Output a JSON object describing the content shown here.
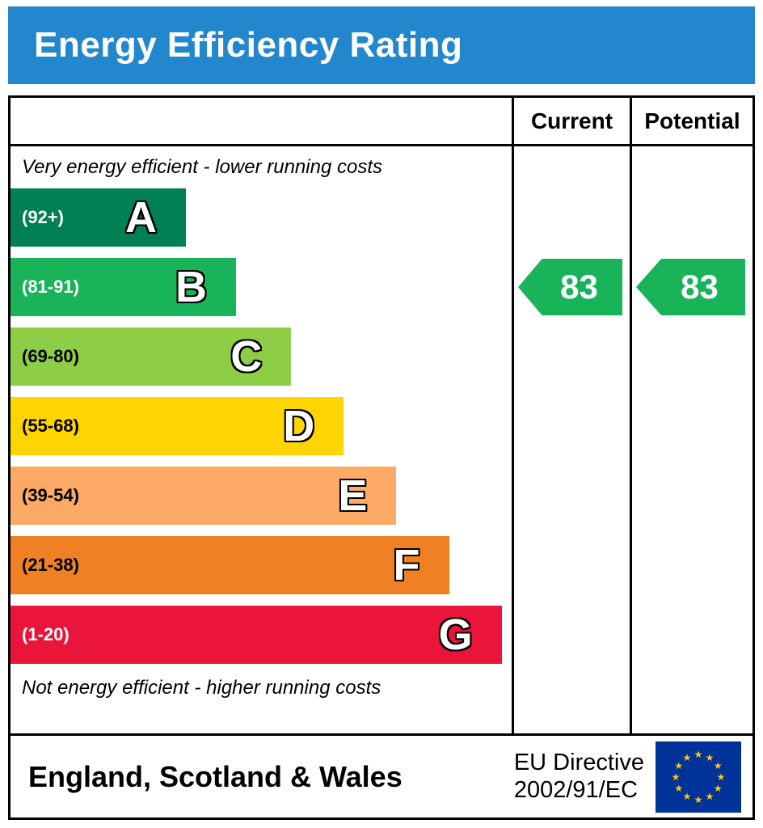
{
  "title": "Energy Efficiency Rating",
  "table": {
    "current_header": "Current",
    "potential_header": "Potential"
  },
  "notes": {
    "top": "Very energy efficient - lower running costs",
    "bottom": "Not energy efficient - higher running costs"
  },
  "footer": {
    "region": "England, Scotland & Wales",
    "directive_line1": "EU Directive",
    "directive_line2": "2002/91/EC",
    "flag_icon": "eu-flag"
  },
  "colors": {
    "header_bg": "#2287cc",
    "title_text": "#ffffff",
    "arrow": "#19b459",
    "border": "#000000",
    "flag_bg": "#003399",
    "flag_stars": "#ffcc00"
  },
  "chart_data": {
    "type": "bar",
    "title": "Energy Efficiency Rating",
    "orientation": "horizontal",
    "legend_position": "none",
    "grid": false,
    "bands": [
      {
        "letter": "A",
        "range": "(92+)",
        "color": "#008054",
        "width_pct": 35,
        "range_text_color": "#ffffff"
      },
      {
        "letter": "B",
        "range": "(81-91)",
        "color": "#19b459",
        "width_pct": 45,
        "range_text_color": "#ffffff"
      },
      {
        "letter": "C",
        "range": "(69-80)",
        "color": "#8dce46",
        "width_pct": 56,
        "range_text_color": "#000000"
      },
      {
        "letter": "D",
        "range": "(55-68)",
        "color": "#ffd500",
        "width_pct": 66.5,
        "range_text_color": "#000000"
      },
      {
        "letter": "E",
        "range": "(39-54)",
        "color": "#fcaa65",
        "width_pct": 77,
        "range_text_color": "#000000"
      },
      {
        "letter": "F",
        "range": "(21-38)",
        "color": "#ef8023",
        "width_pct": 87.5,
        "range_text_color": "#000000"
      },
      {
        "letter": "G",
        "range": "(1-20)",
        "color": "#e9153b",
        "width_pct": 98,
        "range_text_color": "#ffffff"
      }
    ],
    "current": {
      "value": 83,
      "band": "B"
    },
    "potential": {
      "value": 83,
      "band": "B"
    }
  }
}
